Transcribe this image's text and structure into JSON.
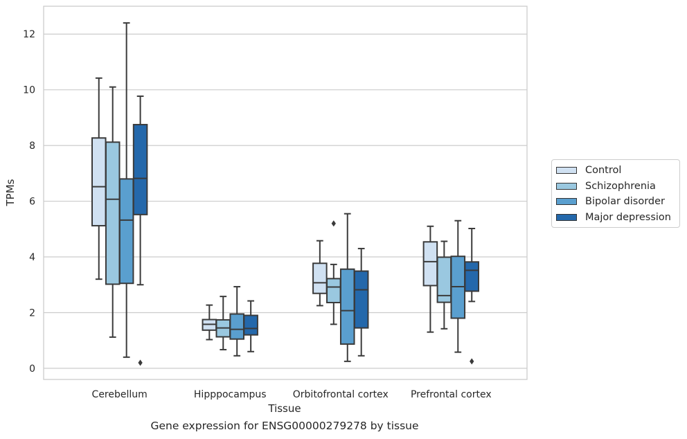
{
  "chart_data": {
    "type": "box",
    "xlabel": "Tissue",
    "ylabel": "TPMs",
    "ylim": [
      -0.4,
      13.0
    ],
    "yticks": [
      0,
      2,
      4,
      6,
      8,
      10,
      12
    ],
    "ytick_labels": [
      "0",
      "2",
      "4",
      "6",
      "8",
      "10",
      "12"
    ],
    "grid": "horizontal",
    "legend_position": "right, outside",
    "categories": [
      "Cerebellum",
      "Hipppocampus",
      "Orbitofrontal cortex",
      "Prefrontal cortex"
    ],
    "series": [
      {
        "name": "Control",
        "color": "#d0e1f2",
        "boxes": [
          {
            "whislo": 3.2,
            "q1": 5.12,
            "med": 6.52,
            "q3": 8.27,
            "whishi": 10.42,
            "fliers": []
          },
          {
            "whislo": 1.03,
            "q1": 1.37,
            "med": 1.58,
            "q3": 1.75,
            "whishi": 2.27,
            "fliers": []
          },
          {
            "whislo": 2.25,
            "q1": 2.69,
            "med": 3.07,
            "q3": 3.77,
            "whishi": 4.58,
            "fliers": []
          },
          {
            "whislo": 1.3,
            "q1": 2.97,
            "med": 3.83,
            "q3": 4.54,
            "whishi": 5.1,
            "fliers": []
          }
        ]
      },
      {
        "name": "Schizophrenia",
        "color": "#9ac8e0",
        "boxes": [
          {
            "whislo": 1.12,
            "q1": 3.02,
            "med": 6.07,
            "q3": 8.12,
            "whishi": 10.1,
            "fliers": []
          },
          {
            "whislo": 0.67,
            "q1": 1.13,
            "med": 1.45,
            "q3": 1.74,
            "whishi": 2.58,
            "fliers": []
          },
          {
            "whislo": 1.58,
            "q1": 2.36,
            "med": 2.92,
            "q3": 3.22,
            "whishi": 3.73,
            "fliers": [
              5.2
            ]
          },
          {
            "whislo": 1.42,
            "q1": 2.37,
            "med": 2.61,
            "q3": 3.99,
            "whishi": 4.56,
            "fliers": []
          }
        ]
      },
      {
        "name": "Bipolar disorder",
        "color": "#5a9fcf",
        "boxes": [
          {
            "whislo": 0.4,
            "q1": 3.05,
            "med": 5.32,
            "q3": 6.8,
            "whishi": 12.4,
            "fliers": []
          },
          {
            "whislo": 0.45,
            "q1": 1.05,
            "med": 1.4,
            "q3": 1.95,
            "whishi": 2.93,
            "fliers": []
          },
          {
            "whislo": 0.25,
            "q1": 0.87,
            "med": 2.07,
            "q3": 3.56,
            "whishi": 5.55,
            "fliers": []
          },
          {
            "whislo": 0.58,
            "q1": 1.8,
            "med": 2.93,
            "q3": 4.02,
            "whishi": 5.3,
            "fliers": []
          }
        ]
      },
      {
        "name": "Major depression",
        "color": "#2468ab",
        "boxes": [
          {
            "whislo": 3.0,
            "q1": 5.52,
            "med": 6.82,
            "q3": 8.75,
            "whishi": 9.77,
            "fliers": [
              0.2
            ]
          },
          {
            "whislo": 0.6,
            "q1": 1.2,
            "med": 1.43,
            "q3": 1.9,
            "whishi": 2.42,
            "fliers": []
          },
          {
            "whislo": 0.45,
            "q1": 1.45,
            "med": 2.82,
            "q3": 3.49,
            "whishi": 4.3,
            "fliers": []
          },
          {
            "whislo": 2.4,
            "q1": 2.77,
            "med": 3.52,
            "q3": 3.82,
            "whishi": 5.02,
            "fliers": [
              0.25
            ]
          }
        ]
      }
    ]
  },
  "caption": "Gene expression for ENSG00000279278 by tissue"
}
